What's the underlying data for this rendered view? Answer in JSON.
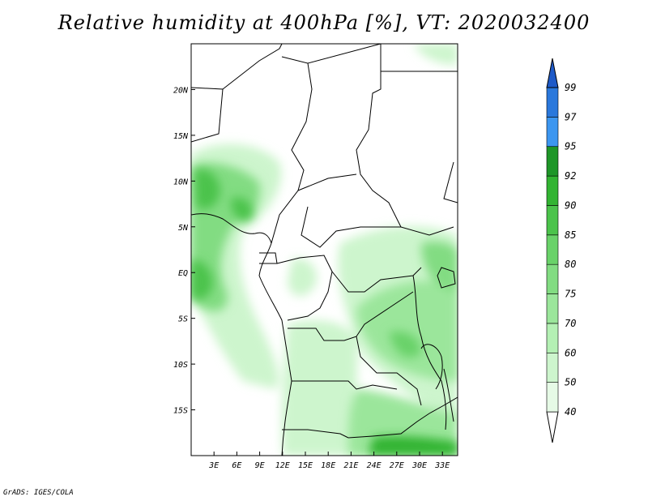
{
  "title": "Relative humidity at 400hPa [%], VT: 2020032400",
  "footer": "GrADS: IGES/COLA",
  "map": {
    "lon_range": [
      0,
      35
    ],
    "lat_range": [
      -20,
      25
    ],
    "lon_ticks": [
      {
        "value": 3,
        "label": "3E"
      },
      {
        "value": 6,
        "label": "6E"
      },
      {
        "value": 9,
        "label": "9E"
      },
      {
        "value": 12,
        "label": "12E"
      },
      {
        "value": 15,
        "label": "15E"
      },
      {
        "value": 18,
        "label": "18E"
      },
      {
        "value": 21,
        "label": "21E"
      },
      {
        "value": 24,
        "label": "24E"
      },
      {
        "value": 27,
        "label": "27E"
      },
      {
        "value": 30,
        "label": "30E"
      },
      {
        "value": 33,
        "label": "33E"
      }
    ],
    "lat_ticks": [
      {
        "value": 20,
        "label": "20N"
      },
      {
        "value": 15,
        "label": "15N"
      },
      {
        "value": 10,
        "label": "10N"
      },
      {
        "value": 5,
        "label": "5N"
      },
      {
        "value": 0,
        "label": "EQ"
      },
      {
        "value": -5,
        "label": "5S"
      },
      {
        "value": -10,
        "label": "10S"
      },
      {
        "value": -15,
        "label": "15S"
      }
    ]
  },
  "colorbar": {
    "levels": [
      "40",
      "50",
      "60",
      "70",
      "75",
      "80",
      "85",
      "90",
      "92",
      "95",
      "97",
      "99"
    ],
    "colors": [
      "#ffffff",
      "#e6fae6",
      "#cdf5cd",
      "#b4f0b4",
      "#9be69b",
      "#82dc82",
      "#69d269",
      "#4bc34b",
      "#32b432",
      "#1e9628",
      "#3c96f0",
      "#2a78dc",
      "#1e5ac8"
    ]
  },
  "colors": {
    "humid_light": "#e6fae6",
    "humid_mid": "#9be69b",
    "humid_dark": "#4bc34b",
    "border": "#000000"
  }
}
